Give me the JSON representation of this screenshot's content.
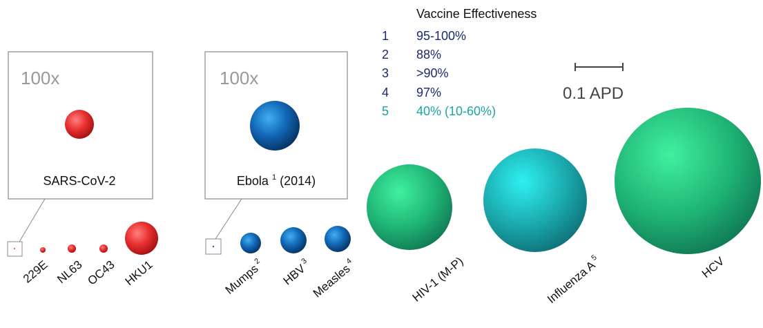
{
  "legend": {
    "title": "Vaccine Effectiveness",
    "rows": [
      {
        "number": "1",
        "text": "95-100%"
      },
      {
        "number": "2",
        "text": "88%"
      },
      {
        "number": "3",
        "text": ">90%"
      },
      {
        "number": "4",
        "text": "97%"
      },
      {
        "number": "5",
        "text": "40% (10-60%)"
      }
    ]
  },
  "scale": {
    "label": "0.1 APD"
  },
  "insets": [
    {
      "zoom": "100x",
      "label": "SARS-CoV-2"
    },
    {
      "zoom": "100x",
      "label": "Ebola",
      "superscript": "1",
      "suffix": "(2014)"
    }
  ],
  "viruses": [
    {
      "name": "229E"
    },
    {
      "name": "NL63"
    },
    {
      "name": "OC43"
    },
    {
      "name": "HKU1"
    },
    {
      "name": "Mumps",
      "superscript": "2"
    },
    {
      "name": "HBV",
      "superscript": "3"
    },
    {
      "name": "Measles",
      "superscript": "4"
    },
    {
      "name": "HIV-1 (M-P)"
    },
    {
      "name": "Influenza A",
      "superscript": "5"
    },
    {
      "name": "HCV"
    }
  ]
}
